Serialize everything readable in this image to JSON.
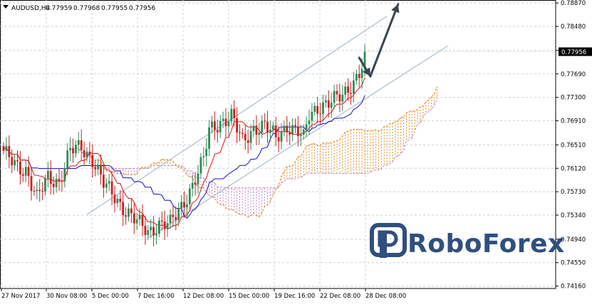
{
  "header": {
    "symbol": "AUDUSD,H4",
    "open": "0.77959",
    "high": "0.77968",
    "low": "0.77955",
    "close": "0.77956"
  },
  "logo": {
    "text": "RoboForex",
    "color": "#2f4f7f"
  },
  "price_label": "0.77956",
  "colors": {
    "bull": "#2e8b57",
    "bear": "#cc2020",
    "tenkan": "#e01010",
    "kijun": "#1010c8",
    "senkou_a": "#e08a20",
    "senkou_b": "#c080c0",
    "channel": "#a8bccc",
    "arrow": "#3a4550"
  },
  "chart_data": {
    "type": "candlestick",
    "symbol": "AUDUSD",
    "timeframe": "H4",
    "grid": true,
    "y_ticks": [
      "0.78870",
      "0.78480",
      "0.78080",
      "0.77690",
      "0.77300",
      "0.76910",
      "0.76510",
      "0.76120",
      "0.75730",
      "0.75340",
      "0.74940",
      "0.74550",
      "0.74160"
    ],
    "x_ticks": [
      "27 Nov 2017",
      "30 Nov 08:00",
      "5 Dec 00:00",
      "7 Dec 16:00",
      "12 Dec 08:00",
      "15 Dec 00:00",
      "19 Dec 16:00",
      "22 Dec 08:00",
      "28 Dec 08:00"
    ],
    "ylim": [
      0.7412,
      0.7892
    ],
    "close_path": [
      [
        0,
        0.7636
      ],
      [
        4,
        0.762
      ],
      [
        8,
        0.761
      ],
      [
        12,
        0.756
      ],
      [
        16,
        0.7598
      ],
      [
        20,
        0.759
      ],
      [
        24,
        0.764
      ],
      [
        28,
        0.7648
      ],
      [
        32,
        0.7628
      ],
      [
        36,
        0.7585
      ],
      [
        40,
        0.7565
      ],
      [
        44,
        0.7542
      ],
      [
        48,
        0.7522
      ],
      [
        52,
        0.7506
      ],
      [
        56,
        0.752
      ],
      [
        60,
        0.7518
      ],
      [
        64,
        0.7548
      ],
      [
        68,
        0.7585
      ],
      [
        72,
        0.7625
      ],
      [
        74,
        0.7675
      ],
      [
        78,
        0.769
      ],
      [
        82,
        0.7698
      ],
      [
        86,
        0.7655
      ],
      [
        90,
        0.768
      ],
      [
        94,
        0.7682
      ],
      [
        98,
        0.7662
      ],
      [
        102,
        0.7684
      ],
      [
        106,
        0.7672
      ],
      [
        108,
        0.766
      ],
      [
        110,
        0.77
      ],
      [
        114,
        0.7718
      ],
      [
        118,
        0.7722
      ],
      [
        122,
        0.7732
      ],
      [
        126,
        0.7758
      ],
      [
        128,
        0.7772
      ],
      [
        130,
        0.7792
      ]
    ],
    "channel_lines": {
      "upper": [
        [
          30,
          0.7535
        ],
        [
          138,
          0.7865
        ]
      ],
      "lower": [
        [
          52,
          0.7496
        ],
        [
          160,
          0.7816
        ]
      ]
    },
    "arrows": [
      {
        "from": [
          128,
          0.7796
        ],
        "to": [
          132,
          0.7765
        ]
      },
      {
        "from": [
          132,
          0.7765
        ],
        "to": [
          142,
          0.7885
        ]
      }
    ]
  }
}
